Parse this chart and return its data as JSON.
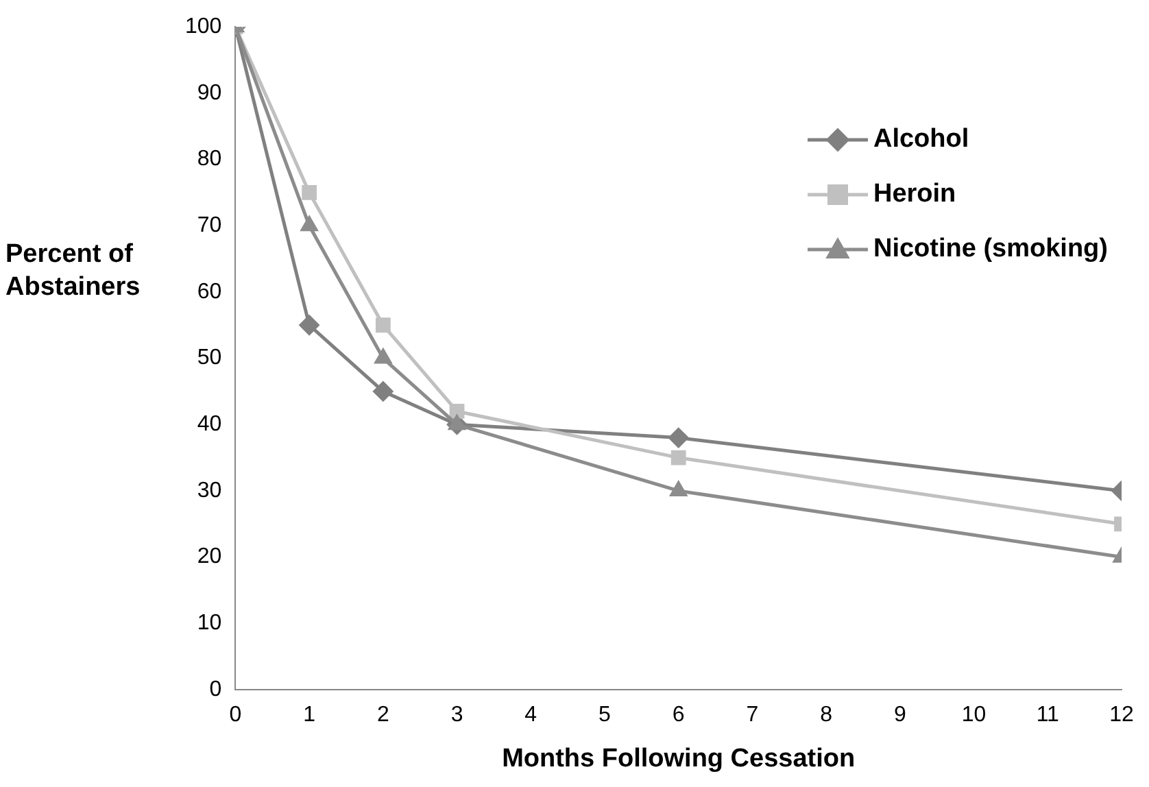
{
  "chart_data": {
    "type": "line",
    "xlabel": "Months Following Cessation",
    "ylabel": "Percent of Abstainers",
    "x": [
      0,
      1,
      2,
      3,
      6,
      12
    ],
    "series": [
      {
        "name": "Alcohol",
        "color": "#808080",
        "marker": "diamond",
        "values": [
          100,
          55,
          45,
          40,
          38,
          30
        ]
      },
      {
        "name": "Heroin",
        "color": "#c0c0c0",
        "marker": "square",
        "values": [
          100,
          75,
          55,
          42,
          35,
          25
        ]
      },
      {
        "name": "Nicotine (smoking)",
        "color": "#8c8c8c",
        "marker": "triangle",
        "values": [
          100,
          70,
          50,
          40,
          30,
          20
        ]
      }
    ],
    "xlim": [
      0,
      12
    ],
    "xticks": [
      0,
      1,
      2,
      3,
      4,
      5,
      6,
      7,
      8,
      9,
      10,
      11,
      12
    ],
    "ylim": [
      0,
      100
    ],
    "yticks": [
      0,
      10,
      20,
      30,
      40,
      50,
      60,
      70,
      80,
      90,
      100
    ],
    "grid": false,
    "legend": "top right",
    "line_style": "solid"
  }
}
